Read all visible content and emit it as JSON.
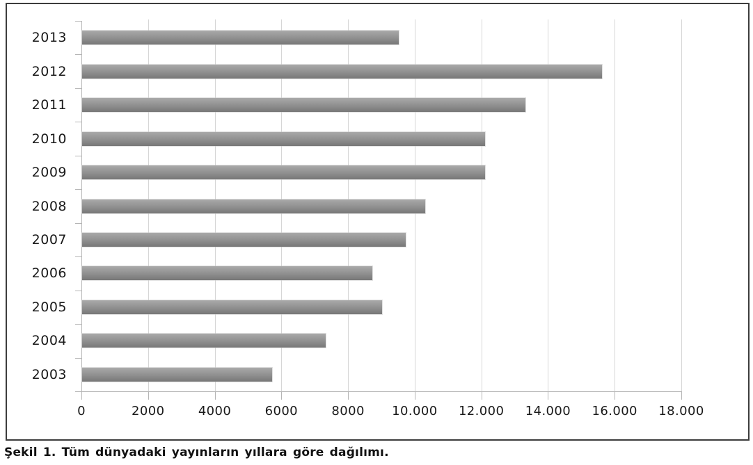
{
  "figure": {
    "caption": "Şekil 1. Tüm dünyadaki yayınların yıllara göre dağılımı."
  },
  "chart_data": {
    "type": "bar",
    "orientation": "horizontal",
    "title": "",
    "xlabel": "",
    "ylabel": "",
    "categories": [
      "2013",
      "2012",
      "2011",
      "2010",
      "2009",
      "2008",
      "2007",
      "2006",
      "2005",
      "2004",
      "2003"
    ],
    "values": [
      9500,
      15600,
      13300,
      12100,
      12100,
      10300,
      9700,
      8700,
      9000,
      7300,
      5700
    ],
    "x_tick_labels": [
      "0",
      "2000",
      "4000",
      "6000",
      "8000",
      "10.000",
      "12.000",
      "14.000",
      "16.000",
      "18.000"
    ],
    "xlim": [
      0,
      18000
    ],
    "grid": "vertical-only",
    "legend_position": "none",
    "colors": {
      "bar_base": "#8e8e8e",
      "bar_gradient_top": "#a9a9a9",
      "bar_gradient_mid": "#8f8f8f",
      "bar_gradient_bottom": "#777777",
      "gridline": "#d6d6d6",
      "axis": "#b5b5b5",
      "frame_border": "#3c3c3c",
      "text": "#1a1a1a"
    }
  }
}
